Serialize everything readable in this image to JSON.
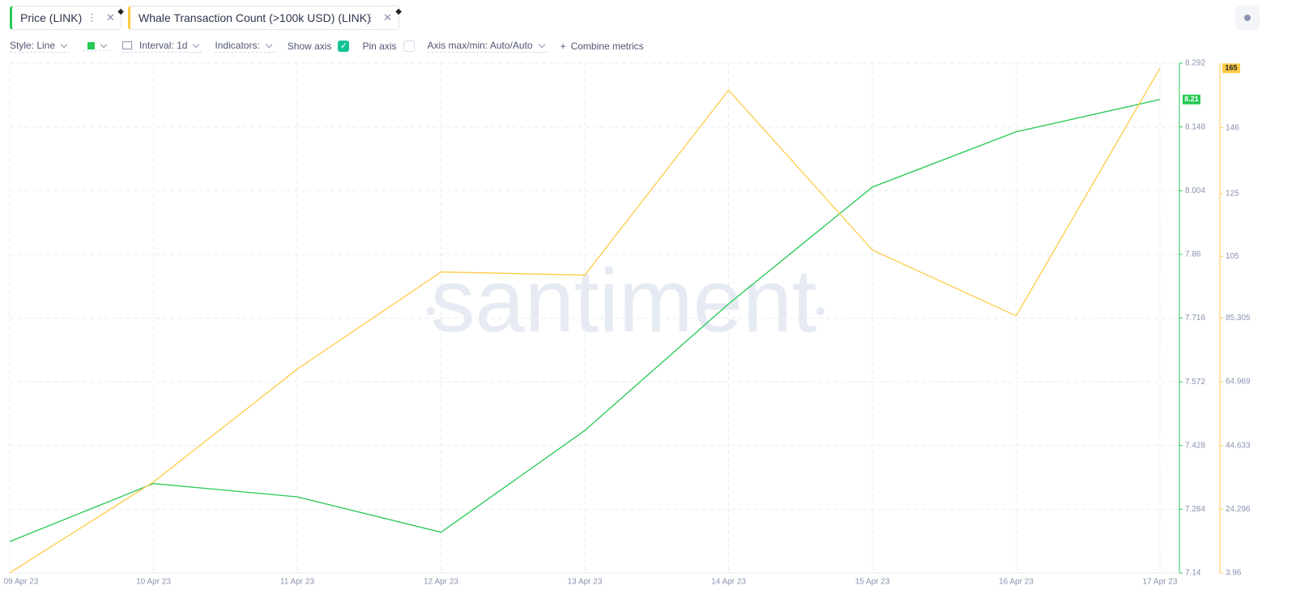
{
  "toolbar": {
    "tabs": [
      "Price (LINK)",
      "Whale Transaction Count (>100k USD) (LINK)"
    ],
    "style": "Style: Line",
    "interval": "Interval: 1d",
    "indicators": "Indicators:",
    "show_axis": "Show axis",
    "pin_axis": "Pin axis",
    "axis_minmax": "Axis max/min: Auto/Auto",
    "combine": "Combine metrics"
  },
  "watermark": "santiment",
  "chart_data": {
    "type": "line",
    "x": [
      "09 Apr 23",
      "10 Apr 23",
      "11 Apr 23",
      "12 Apr 23",
      "13 Apr 23",
      "14 Apr 23",
      "15 Apr 23",
      "16 Apr 23",
      "17 Apr 23"
    ],
    "series": [
      {
        "name": "Price (LINK)",
        "color": "#26c953",
        "values": [
          7.211,
          7.342,
          7.312,
          7.232,
          7.462,
          7.748,
          8.012,
          8.137,
          8.21
        ]
      },
      {
        "name": "Whale Transaction Count (>100k USD) (LINK)",
        "color": "#ffcb47",
        "axis": "y2",
        "values": [
          4,
          33,
          69,
          100,
          99,
          158,
          107,
          86,
          165
        ]
      }
    ],
    "ylim": [
      7.14,
      8.292
    ],
    "yticks": [
      7.14,
      7.284,
      7.428,
      7.572,
      7.716,
      7.86,
      8.004,
      8.148,
      8.292
    ],
    "y2lim": [
      3.96,
      166.6
    ],
    "y2ticks": [
      3.96,
      24.296,
      44.633,
      64.969,
      85.305,
      105,
      125,
      146
    ],
    "grid": true
  }
}
